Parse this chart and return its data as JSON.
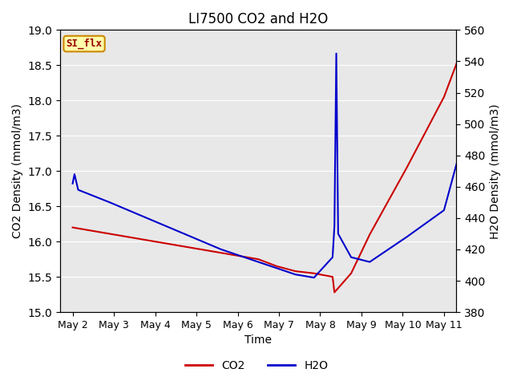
{
  "title": "LI7500 CO2 and H2O",
  "xlabel": "Time",
  "ylabel_left": "CO2 Density (mmol/m3)",
  "ylabel_right": "H2O Density (mmol/m3)",
  "x_labels": [
    "May 2",
    "May 3",
    "May 4",
    "May 5",
    "May 6",
    "May 7",
    "May 8",
    "May 9",
    "May 10",
    "May 11"
  ],
  "co2_x": [
    0,
    5.0,
    5.5,
    6.0,
    6.5,
    7.0,
    7.05,
    7.5,
    8.0,
    9.0,
    10.0,
    10.5,
    10.55
  ],
  "co2_y": [
    16.2,
    15.75,
    15.65,
    15.58,
    15.55,
    15.5,
    15.28,
    15.55,
    16.1,
    17.05,
    18.05,
    18.75,
    17.6
  ],
  "h2o_x": [
    0.0,
    0.05,
    0.15,
    1.0,
    2.0,
    3.0,
    4.0,
    5.0,
    5.5,
    6.0,
    6.5,
    7.0,
    7.05,
    7.1,
    7.15,
    7.5,
    8.0,
    9.0,
    10.0,
    10.4,
    10.45,
    10.5,
    10.55
  ],
  "h2o_y": [
    462,
    468,
    458,
    450,
    440,
    430,
    420,
    412,
    408,
    404,
    402,
    415,
    435,
    545,
    430,
    415,
    412,
    428,
    445,
    480,
    402,
    413,
    445
  ],
  "co2_color": "#cc0000",
  "h2o_color": "#0000cc",
  "ylim_left": [
    15.0,
    19.0
  ],
  "ylim_right": [
    380,
    560
  ],
  "annotation_text": "SI_flx",
  "annotation_bg": "#ffffaa",
  "annotation_border": "#cc8800",
  "annotation_text_color": "#990000",
  "bg_color": "#e8e8e8",
  "legend_labels": [
    "CO2",
    "H2O"
  ],
  "grid_color": "#ffffff",
  "title_fontsize": 12,
  "axis_fontsize": 10,
  "tick_fontsize": 9,
  "line_width": 1.5
}
